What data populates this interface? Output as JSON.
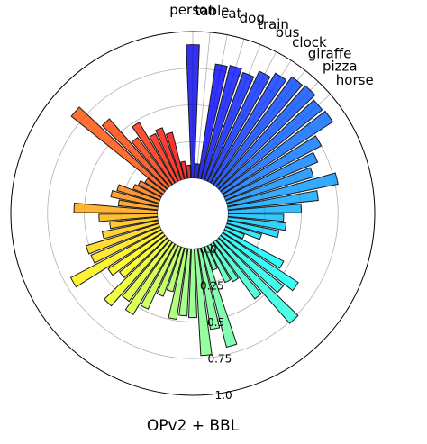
{
  "chart_data": {
    "type": "bar",
    "subtype": "polar",
    "title": "OPv2 + BBL",
    "rlim": [
      0,
      1.0
    ],
    "rticks": [
      0.0,
      0.25,
      0.5,
      0.75,
      1.0
    ],
    "rtick_labels": [
      "0.0",
      "0.25",
      "0.5",
      "0.75",
      "1.0"
    ],
    "grid": true,
    "colormap": "jet",
    "labeled_categories": [
      "person",
      "table",
      "cat",
      "dog",
      "train",
      "bus",
      "clock",
      "giraffe",
      "pizza",
      "horse"
    ],
    "values": [
      0.91,
      0.1,
      0.79,
      0.8,
      0.78,
      0.83,
      0.87,
      0.91,
      0.92,
      0.89,
      0.9,
      0.75,
      0.68,
      0.62,
      0.77,
      0.62,
      0.5,
      0.38,
      0.4,
      0.36,
      0.25,
      0.14,
      0.46,
      0.62,
      0.55,
      0.76,
      0.48,
      0.3,
      0.28,
      0.17,
      0.7,
      0.56,
      0.73,
      0.47,
      0.46,
      0.49,
      0.31,
      0.36,
      0.48,
      0.56,
      0.5,
      0.6,
      0.4,
      0.45,
      0.7,
      0.51,
      0.52,
      0.39,
      0.33,
      0.4,
      0.57,
      0.27,
      0.33,
      0.3,
      0.2,
      0.18,
      0.15,
      0.82,
      0.62,
      0.4,
      0.48,
      0.36,
      0.38,
      0.33,
      0.12,
      0.09
    ],
    "color_range": [
      "#00007f",
      "#0000ff",
      "#00ffff",
      "#ffff00",
      "#ff0000",
      "#7f0000"
    ]
  }
}
